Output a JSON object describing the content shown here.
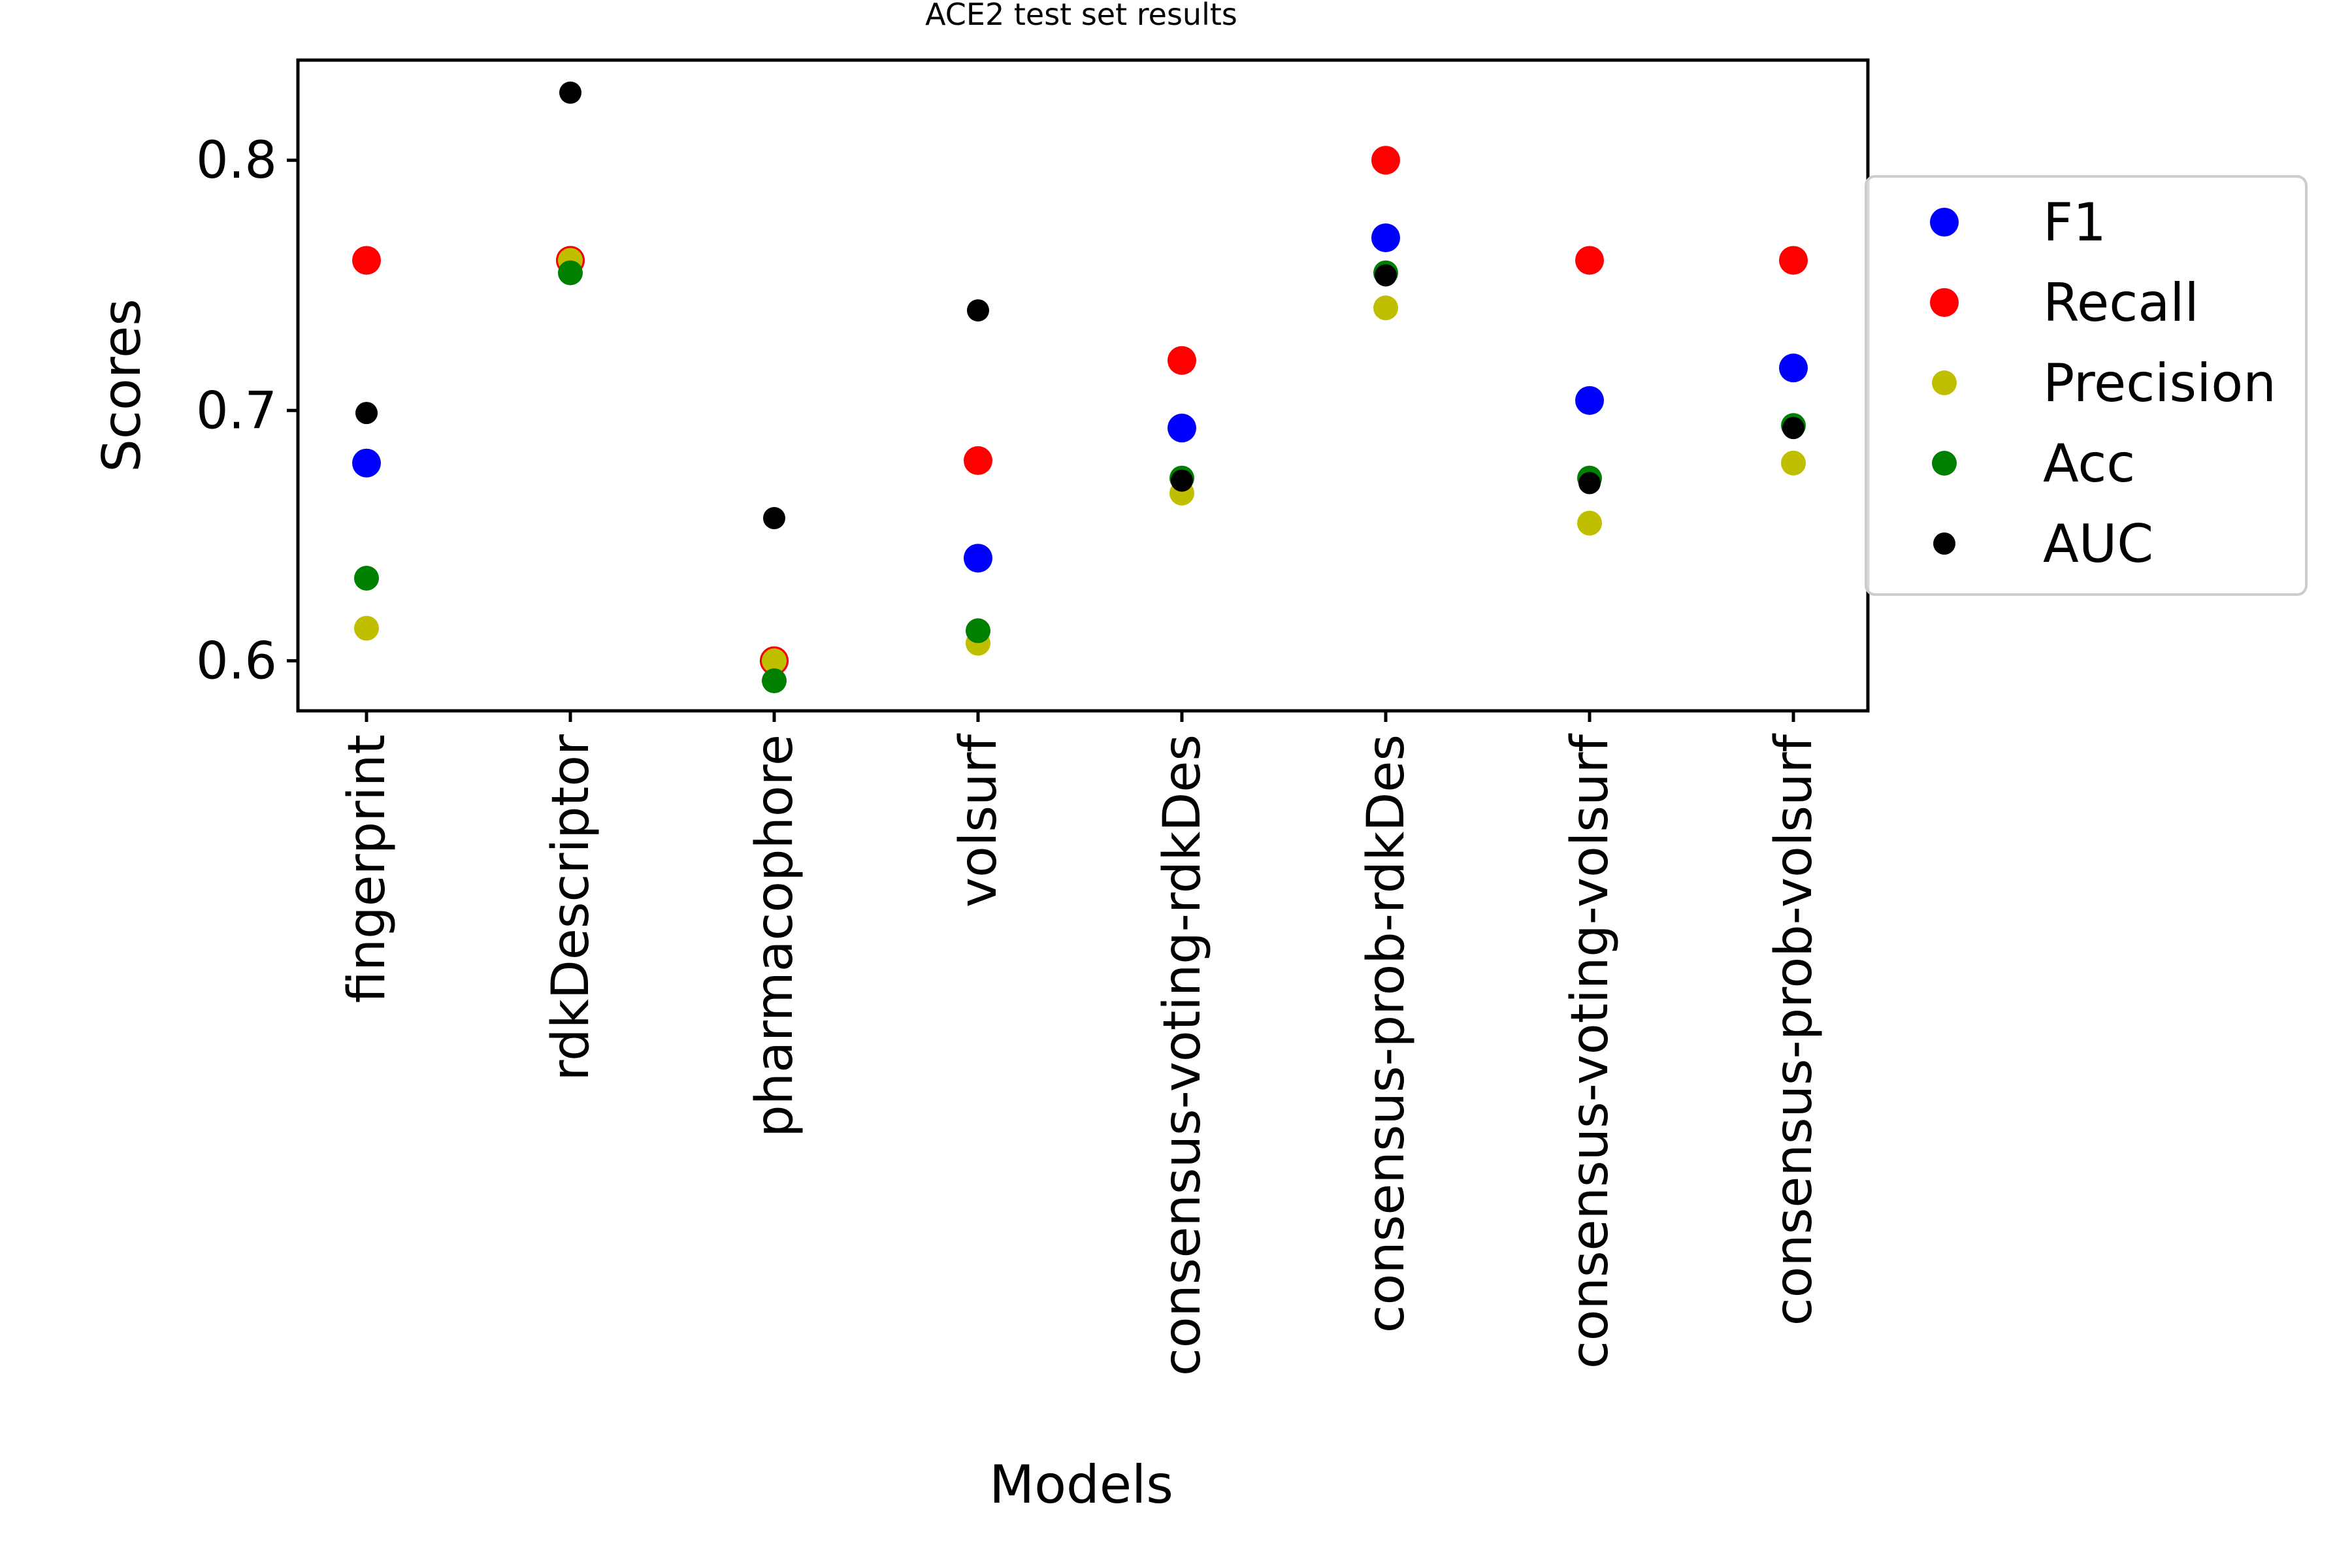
{
  "chart_data": {
    "type": "scatter",
    "title": "ACE2 test set results",
    "xlabel": "Models",
    "ylabel": "Scores",
    "categories": [
      "fingerprint",
      "rdkDescriptor",
      "pharmacophore",
      "volsurf",
      "consensus-voting-rdkDes",
      "consensus-prob-rdkDes",
      "consensus-voting-volsurf",
      "consensus-prob-volsurf"
    ],
    "ylim": [
      0.58,
      0.84
    ],
    "yticks": [
      0.6,
      0.7,
      0.8
    ],
    "ytick_labels": [
      "0.6",
      "0.7",
      "0.8"
    ],
    "legend_position": "right, outside plot",
    "grid": false,
    "series": [
      {
        "name": "F1",
        "color": "#0000ff",
        "values": [
          0.679,
          0.76,
          0.6,
          0.641,
          0.693,
          0.769,
          0.704,
          0.717
        ]
      },
      {
        "name": "Recall",
        "color": "#ff0000",
        "values": [
          0.76,
          0.76,
          0.6,
          0.68,
          0.72,
          0.8,
          0.76,
          0.76
        ]
      },
      {
        "name": "Precision",
        "color": "#bfbf00",
        "values": [
          0.613,
          0.76,
          0.6,
          0.607,
          0.667,
          0.741,
          0.655,
          0.679
        ]
      },
      {
        "name": "Acc",
        "color": "#008000",
        "values": [
          0.633,
          0.755,
          0.592,
          0.612,
          0.673,
          0.755,
          0.673,
          0.694
        ]
      },
      {
        "name": "AUC",
        "color": "#000000",
        "values": [
          0.699,
          0.827,
          0.657,
          0.74,
          0.672,
          0.754,
          0.671,
          0.693
        ]
      }
    ]
  }
}
